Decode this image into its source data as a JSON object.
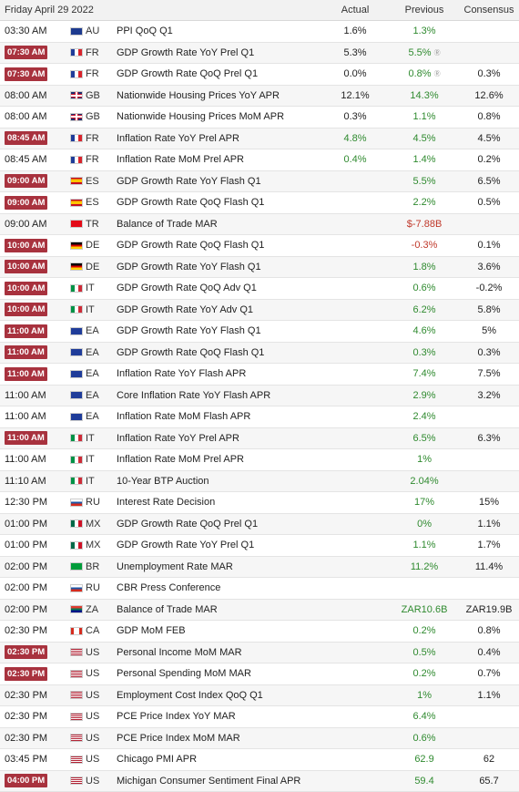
{
  "header": {
    "date": "Friday April 29 2022",
    "actual": "Actual",
    "previous": "Previous",
    "consensus": "Consensus"
  },
  "rows": [
    {
      "time": "03:30 AM",
      "hl": false,
      "cc": "AU",
      "flag": "au",
      "event": "PPI QoQ Q1",
      "actual": "1.6%",
      "actual_color": "",
      "previous": "1.3%",
      "prev_color": "green",
      "revised": false,
      "consensus": ""
    },
    {
      "time": "07:30 AM",
      "hl": true,
      "cc": "FR",
      "flag": "fr",
      "event": "GDP Growth Rate YoY Prel Q1",
      "actual": "5.3%",
      "actual_color": "",
      "previous": "5.5%",
      "prev_color": "green",
      "revised": true,
      "consensus": ""
    },
    {
      "time": "07:30 AM",
      "hl": true,
      "cc": "FR",
      "flag": "fr",
      "event": "GDP Growth Rate QoQ Prel Q1",
      "actual": "0.0%",
      "actual_color": "",
      "previous": "0.8%",
      "prev_color": "green",
      "revised": true,
      "consensus": "0.3%"
    },
    {
      "time": "08:00 AM",
      "hl": false,
      "cc": "GB",
      "flag": "gb",
      "event": "Nationwide Housing Prices YoY APR",
      "actual": "12.1%",
      "actual_color": "",
      "previous": "14.3%",
      "prev_color": "green",
      "revised": false,
      "consensus": "12.6%"
    },
    {
      "time": "08:00 AM",
      "hl": false,
      "cc": "GB",
      "flag": "gb",
      "event": "Nationwide Housing Prices MoM APR",
      "actual": "0.3%",
      "actual_color": "",
      "previous": "1.1%",
      "prev_color": "green",
      "revised": false,
      "consensus": "0.8%"
    },
    {
      "time": "08:45 AM",
      "hl": true,
      "cc": "FR",
      "flag": "fr",
      "event": "Inflation Rate YoY Prel APR",
      "actual": "4.8%",
      "actual_color": "green",
      "previous": "4.5%",
      "prev_color": "green",
      "revised": false,
      "consensus": "4.5%"
    },
    {
      "time": "08:45 AM",
      "hl": false,
      "cc": "FR",
      "flag": "fr",
      "event": "Inflation Rate MoM Prel APR",
      "actual": "0.4%",
      "actual_color": "green",
      "previous": "1.4%",
      "prev_color": "green",
      "revised": false,
      "consensus": "0.2%"
    },
    {
      "time": "09:00 AM",
      "hl": true,
      "cc": "ES",
      "flag": "es",
      "event": "GDP Growth Rate YoY Flash Q1",
      "actual": "",
      "actual_color": "",
      "previous": "5.5%",
      "prev_color": "green",
      "revised": false,
      "consensus": "6.5%"
    },
    {
      "time": "09:00 AM",
      "hl": true,
      "cc": "ES",
      "flag": "es",
      "event": "GDP Growth Rate QoQ Flash Q1",
      "actual": "",
      "actual_color": "",
      "previous": "2.2%",
      "prev_color": "green",
      "revised": false,
      "consensus": "0.5%"
    },
    {
      "time": "09:00 AM",
      "hl": false,
      "cc": "TR",
      "flag": "tr",
      "event": "Balance of Trade MAR",
      "actual": "",
      "actual_color": "",
      "previous": "$-7.88B",
      "prev_color": "red",
      "revised": false,
      "consensus": ""
    },
    {
      "time": "10:00 AM",
      "hl": true,
      "cc": "DE",
      "flag": "de",
      "event": "GDP Growth Rate QoQ Flash Q1",
      "actual": "",
      "actual_color": "",
      "previous": "-0.3%",
      "prev_color": "red",
      "revised": false,
      "consensus": "0.1%"
    },
    {
      "time": "10:00 AM",
      "hl": true,
      "cc": "DE",
      "flag": "de",
      "event": "GDP Growth Rate YoY Flash Q1",
      "actual": "",
      "actual_color": "",
      "previous": "1.8%",
      "prev_color": "green",
      "revised": false,
      "consensus": "3.6%"
    },
    {
      "time": "10:00 AM",
      "hl": true,
      "cc": "IT",
      "flag": "it",
      "event": "GDP Growth Rate QoQ Adv Q1",
      "actual": "",
      "actual_color": "",
      "previous": "0.6%",
      "prev_color": "green",
      "revised": false,
      "consensus": "-0.2%"
    },
    {
      "time": "10:00 AM",
      "hl": true,
      "cc": "IT",
      "flag": "it",
      "event": "GDP Growth Rate YoY Adv Q1",
      "actual": "",
      "actual_color": "",
      "previous": "6.2%",
      "prev_color": "green",
      "revised": false,
      "consensus": "5.8%"
    },
    {
      "time": "11:00 AM",
      "hl": true,
      "cc": "EA",
      "flag": "ea",
      "event": "GDP Growth Rate YoY Flash Q1",
      "actual": "",
      "actual_color": "",
      "previous": "4.6%",
      "prev_color": "green",
      "revised": false,
      "consensus": "5%"
    },
    {
      "time": "11:00 AM",
      "hl": true,
      "cc": "EA",
      "flag": "ea",
      "event": "GDP Growth Rate QoQ Flash Q1",
      "actual": "",
      "actual_color": "",
      "previous": "0.3%",
      "prev_color": "green",
      "revised": false,
      "consensus": "0.3%"
    },
    {
      "time": "11:00 AM",
      "hl": true,
      "cc": "EA",
      "flag": "ea",
      "event": "Inflation Rate YoY Flash APR",
      "actual": "",
      "actual_color": "",
      "previous": "7.4%",
      "prev_color": "green",
      "revised": false,
      "consensus": "7.5%"
    },
    {
      "time": "11:00 AM",
      "hl": false,
      "cc": "EA",
      "flag": "ea",
      "event": "Core Inflation Rate YoY Flash APR",
      "actual": "",
      "actual_color": "",
      "previous": "2.9%",
      "prev_color": "green",
      "revised": false,
      "consensus": "3.2%"
    },
    {
      "time": "11:00 AM",
      "hl": false,
      "cc": "EA",
      "flag": "ea",
      "event": "Inflation Rate MoM Flash APR",
      "actual": "",
      "actual_color": "",
      "previous": "2.4%",
      "prev_color": "green",
      "revised": false,
      "consensus": ""
    },
    {
      "time": "11:00 AM",
      "hl": true,
      "cc": "IT",
      "flag": "it",
      "event": "Inflation Rate YoY Prel APR",
      "actual": "",
      "actual_color": "",
      "previous": "6.5%",
      "prev_color": "green",
      "revised": false,
      "consensus": "6.3%"
    },
    {
      "time": "11:00 AM",
      "hl": false,
      "cc": "IT",
      "flag": "it",
      "event": "Inflation Rate MoM Prel APR",
      "actual": "",
      "actual_color": "",
      "previous": "1%",
      "prev_color": "green",
      "revised": false,
      "consensus": ""
    },
    {
      "time": "11:10 AM",
      "hl": false,
      "cc": "IT",
      "flag": "it",
      "event": "10-Year BTP Auction",
      "actual": "",
      "actual_color": "",
      "previous": "2.04%",
      "prev_color": "green",
      "revised": false,
      "consensus": ""
    },
    {
      "time": "12:30 PM",
      "hl": false,
      "cc": "RU",
      "flag": "ru",
      "event": "Interest Rate Decision",
      "actual": "",
      "actual_color": "",
      "previous": "17%",
      "prev_color": "green",
      "revised": false,
      "consensus": "15%"
    },
    {
      "time": "01:00 PM",
      "hl": false,
      "cc": "MX",
      "flag": "mx",
      "event": "GDP Growth Rate QoQ Prel Q1",
      "actual": "",
      "actual_color": "",
      "previous": "0%",
      "prev_color": "green",
      "revised": false,
      "consensus": "1.1%"
    },
    {
      "time": "01:00 PM",
      "hl": false,
      "cc": "MX",
      "flag": "mx",
      "event": "GDP Growth Rate YoY Prel Q1",
      "actual": "",
      "actual_color": "",
      "previous": "1.1%",
      "prev_color": "green",
      "revised": false,
      "consensus": "1.7%"
    },
    {
      "time": "02:00 PM",
      "hl": false,
      "cc": "BR",
      "flag": "br",
      "event": "Unemployment Rate MAR",
      "actual": "",
      "actual_color": "",
      "previous": "11.2%",
      "prev_color": "green",
      "revised": false,
      "consensus": "11.4%"
    },
    {
      "time": "02:00 PM",
      "hl": false,
      "cc": "RU",
      "flag": "ru",
      "event": "CBR Press Conference",
      "actual": "",
      "actual_color": "",
      "previous": "",
      "prev_color": "",
      "revised": false,
      "consensus": ""
    },
    {
      "time": "02:00 PM",
      "hl": false,
      "cc": "ZA",
      "flag": "za",
      "event": "Balance of Trade MAR",
      "actual": "",
      "actual_color": "",
      "previous": "ZAR10.6B",
      "prev_color": "green",
      "revised": false,
      "consensus": "ZAR19.9B"
    },
    {
      "time": "02:30 PM",
      "hl": false,
      "cc": "CA",
      "flag": "ca",
      "event": "GDP MoM FEB",
      "actual": "",
      "actual_color": "",
      "previous": "0.2%",
      "prev_color": "green",
      "revised": false,
      "consensus": "0.8%"
    },
    {
      "time": "02:30 PM",
      "hl": true,
      "cc": "US",
      "flag": "us",
      "event": "Personal Income MoM MAR",
      "actual": "",
      "actual_color": "",
      "previous": "0.5%",
      "prev_color": "green",
      "revised": false,
      "consensus": "0.4%"
    },
    {
      "time": "02:30 PM",
      "hl": true,
      "cc": "US",
      "flag": "us",
      "event": "Personal Spending MoM MAR",
      "actual": "",
      "actual_color": "",
      "previous": "0.2%",
      "prev_color": "green",
      "revised": false,
      "consensus": "0.7%"
    },
    {
      "time": "02:30 PM",
      "hl": false,
      "cc": "US",
      "flag": "us",
      "event": "Employment Cost Index QoQ Q1",
      "actual": "",
      "actual_color": "",
      "previous": "1%",
      "prev_color": "green",
      "revised": false,
      "consensus": "1.1%"
    },
    {
      "time": "02:30 PM",
      "hl": false,
      "cc": "US",
      "flag": "us",
      "event": "PCE Price Index YoY MAR",
      "actual": "",
      "actual_color": "",
      "previous": "6.4%",
      "prev_color": "green",
      "revised": false,
      "consensus": ""
    },
    {
      "time": "02:30 PM",
      "hl": false,
      "cc": "US",
      "flag": "us",
      "event": "PCE Price Index MoM MAR",
      "actual": "",
      "actual_color": "",
      "previous": "0.6%",
      "prev_color": "green",
      "revised": false,
      "consensus": ""
    },
    {
      "time": "03:45 PM",
      "hl": false,
      "cc": "US",
      "flag": "us",
      "event": "Chicago PMI APR",
      "actual": "",
      "actual_color": "",
      "previous": "62.9",
      "prev_color": "green",
      "revised": false,
      "consensus": "62"
    },
    {
      "time": "04:00 PM",
      "hl": true,
      "cc": "US",
      "flag": "us",
      "event": "Michigan Consumer Sentiment Final APR",
      "actual": "",
      "actual_color": "",
      "previous": "59.4",
      "prev_color": "green",
      "revised": false,
      "consensus": "65.7"
    }
  ]
}
